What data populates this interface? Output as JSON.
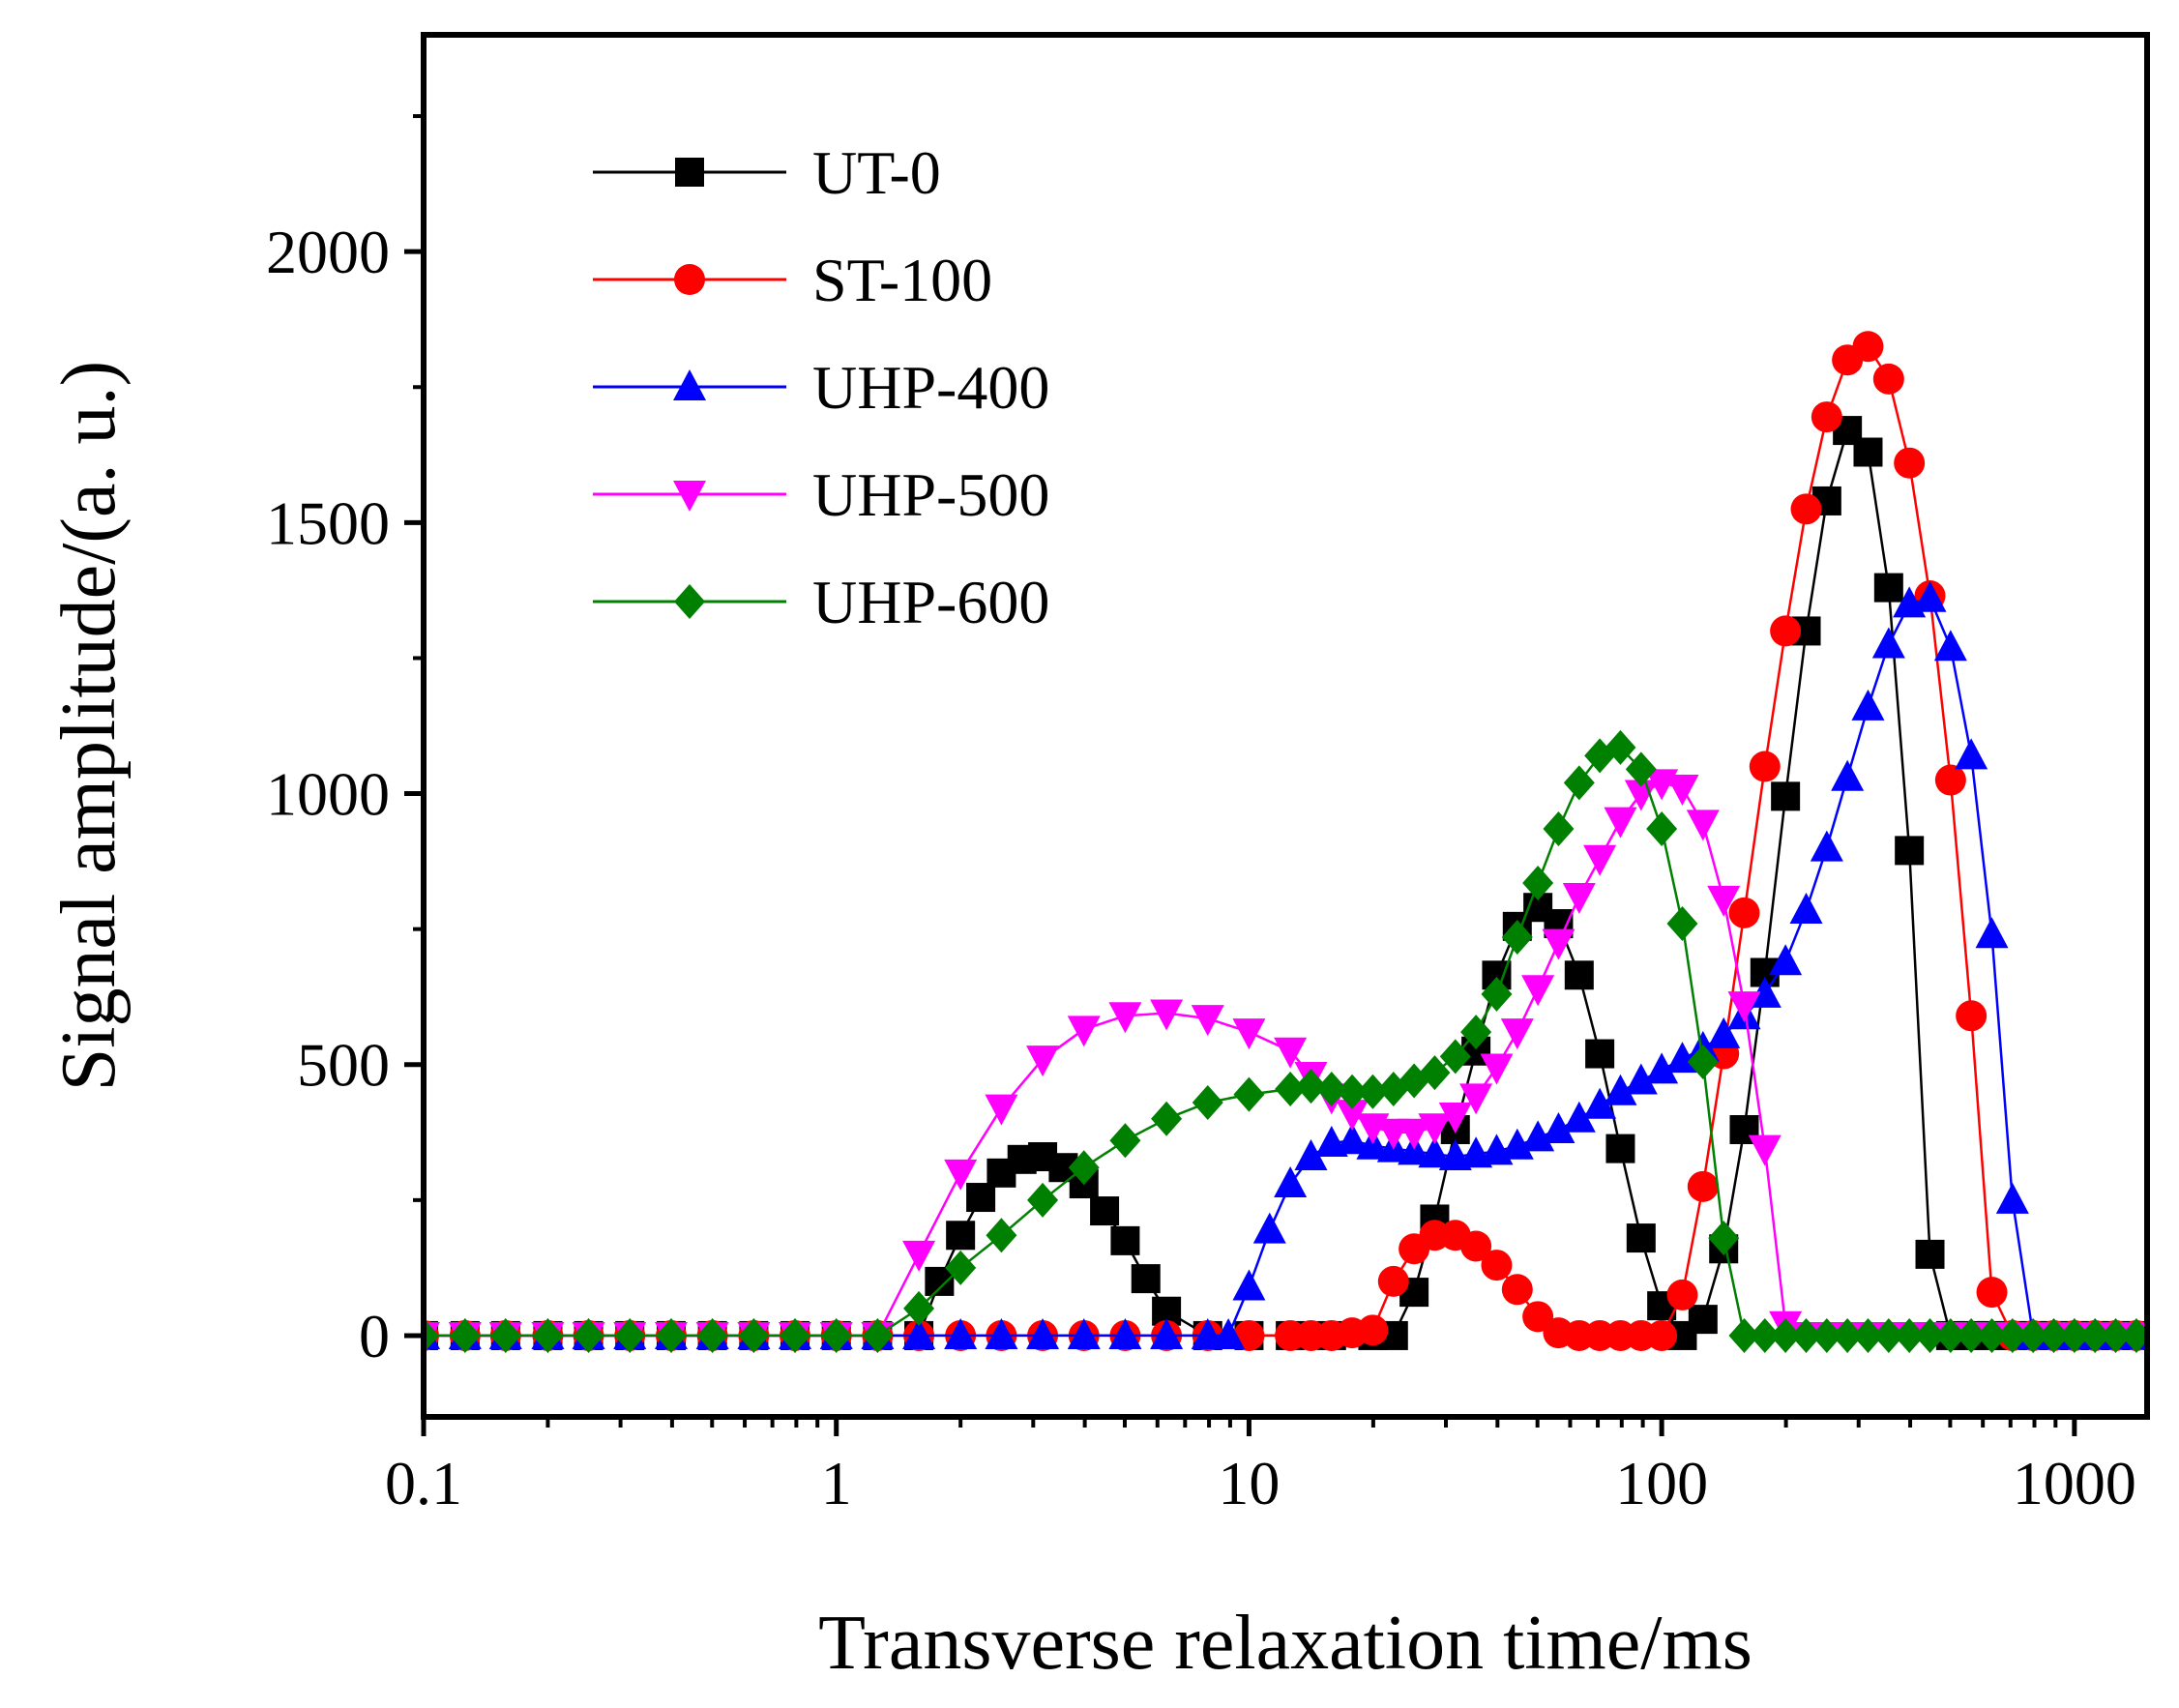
{
  "chart_data": {
    "type": "line",
    "title": "",
    "xlabel": "Transverse relaxation time/ms",
    "ylabel": "Signal amplitude/(a. u.)",
    "xscale": "log",
    "xlim": [
      0.1,
      1500
    ],
    "ylim": [
      -150,
      2400
    ],
    "xticks": [
      0.1,
      1,
      10,
      100,
      1000
    ],
    "xtick_labels": [
      "0.1",
      "1",
      "10",
      "100",
      "1000"
    ],
    "yticks": [
      0,
      500,
      1000,
      1500,
      2000
    ],
    "ytick_labels": [
      "0",
      "500",
      "1000",
      "1500",
      "2000"
    ],
    "legend_position": "top-left",
    "series": [
      {
        "name": "UT-0",
        "color": "#000000",
        "marker": "square",
        "x": [
          0.1,
          0.126,
          0.158,
          0.2,
          0.251,
          0.316,
          0.398,
          0.501,
          0.631,
          0.794,
          1,
          1.259,
          1.585,
          1.778,
          2,
          2.239,
          2.512,
          2.818,
          3.162,
          3.548,
          3.981,
          4.467,
          5.012,
          5.623,
          6.31,
          7.943,
          10,
          12.59,
          15.85,
          19.95,
          22.39,
          25.12,
          28.18,
          31.62,
          35.48,
          39.81,
          44.67,
          50.12,
          56.23,
          63.1,
          70.79,
          79.43,
          89.13,
          100,
          112.2,
          125.9,
          141.3,
          158.5,
          177.8,
          199.5,
          223.9,
          251.2,
          281.8,
          316.2,
          354.8,
          398.1,
          446.7,
          501.2,
          562.3,
          631,
          707.9,
          794.3,
          891.3,
          1000,
          1122,
          1259,
          1413
        ],
        "y": [
          0,
          0,
          0,
          0,
          0,
          0,
          0,
          0,
          0,
          0,
          0,
          0,
          0,
          100,
          185,
          255,
          300,
          325,
          330,
          310,
          280,
          230,
          175,
          105,
          45,
          0,
          0,
          0,
          0,
          0,
          0,
          80,
          215,
          380,
          525,
          665,
          755,
          790,
          760,
          665,
          520,
          345,
          180,
          55,
          0,
          30,
          160,
          380,
          670,
          995,
          1300,
          1540,
          1670,
          1630,
          1380,
          895,
          150,
          0,
          0,
          0,
          0,
          0,
          0,
          0,
          0,
          0,
          0
        ]
      },
      {
        "name": "ST-100",
        "color": "#ff0000",
        "marker": "circle",
        "x": [
          0.1,
          0.126,
          0.158,
          0.2,
          0.251,
          0.316,
          0.398,
          0.501,
          0.631,
          0.794,
          1,
          1.259,
          1.585,
          2,
          2.512,
          3.162,
          3.981,
          5.012,
          6.31,
          7.943,
          10,
          12.59,
          14.13,
          15.85,
          17.78,
          19.95,
          22.39,
          25.12,
          28.18,
          31.62,
          35.48,
          39.81,
          44.67,
          50.12,
          56.23,
          63.1,
          70.79,
          79.43,
          89.13,
          100,
          112.2,
          125.9,
          141.3,
          158.5,
          177.8,
          199.5,
          223.9,
          251.2,
          281.8,
          316.2,
          354.8,
          398.1,
          446.7,
          501.2,
          562.3,
          631,
          707.9,
          794.3,
          891.3,
          1000,
          1122,
          1259,
          1413
        ],
        "y": [
          0,
          0,
          0,
          0,
          0,
          0,
          0,
          0,
          0,
          0,
          0,
          0,
          0,
          0,
          0,
          0,
          0,
          0,
          0,
          0,
          0,
          0,
          0,
          0,
          5,
          10,
          100,
          160,
          185,
          185,
          165,
          130,
          85,
          35,
          5,
          0,
          0,
          0,
          0,
          0,
          75,
          275,
          520,
          780,
          1050,
          1300,
          1525,
          1695,
          1800,
          1825,
          1765,
          1610,
          1365,
          1025,
          590,
          80,
          0,
          0,
          0,
          0,
          0,
          0,
          0
        ]
      },
      {
        "name": "UHP-400",
        "color": "#0000ff",
        "marker": "triangle-up",
        "x": [
          0.1,
          0.126,
          0.158,
          0.2,
          0.251,
          0.316,
          0.398,
          0.501,
          0.631,
          0.794,
          1,
          1.259,
          1.585,
          2,
          2.512,
          3.162,
          3.981,
          5.012,
          6.31,
          7.943,
          8.913,
          10,
          11.22,
          12.59,
          14.13,
          15.85,
          17.78,
          19.95,
          22.39,
          25.12,
          28.18,
          31.62,
          35.48,
          39.81,
          44.67,
          50.12,
          56.23,
          63.1,
          70.79,
          79.43,
          89.13,
          100,
          112.2,
          125.9,
          141.3,
          158.5,
          177.8,
          199.5,
          223.9,
          251.2,
          281.8,
          316.2,
          354.8,
          398.1,
          446.7,
          501.2,
          562.3,
          631,
          707.9,
          794.3,
          891.3,
          1000,
          1122,
          1259,
          1413
        ],
        "y": [
          0,
          0,
          0,
          0,
          0,
          0,
          0,
          0,
          0,
          0,
          0,
          0,
          0,
          0,
          0,
          0,
          0,
          0,
          0,
          0,
          0,
          90,
          195,
          280,
          330,
          355,
          360,
          350,
          345,
          340,
          335,
          330,
          335,
          340,
          350,
          365,
          380,
          400,
          425,
          450,
          470,
          490,
          510,
          530,
          555,
          590,
          630,
          690,
          785,
          900,
          1030,
          1160,
          1275,
          1350,
          1360,
          1270,
          1070,
          740,
          250,
          0,
          0,
          0,
          0,
          0,
          0
        ]
      },
      {
        "name": "UHP-500",
        "color": "#ff00ff",
        "marker": "triangle-down",
        "x": [
          0.1,
          0.126,
          0.158,
          0.2,
          0.251,
          0.316,
          0.398,
          0.501,
          0.631,
          0.794,
          1,
          1.259,
          1.585,
          2,
          2.512,
          3.162,
          3.981,
          5.012,
          6.31,
          7.943,
          10,
          12.59,
          14.13,
          15.85,
          17.78,
          19.95,
          22.39,
          25.12,
          28.18,
          31.62,
          35.48,
          39.81,
          44.67,
          50.12,
          56.23,
          63.1,
          70.79,
          79.43,
          89.13,
          100,
          112.2,
          125.9,
          141.3,
          158.5,
          177.8,
          199.5,
          223.9,
          251.2,
          281.8,
          316.2,
          354.8,
          398.1,
          446.7,
          501.2,
          562.3,
          631,
          707.9,
          794.3,
          891.3,
          1000,
          1122,
          1259,
          1413
        ],
        "y": [
          0,
          0,
          0,
          0,
          0,
          0,
          0,
          0,
          0,
          0,
          0,
          0,
          150,
          300,
          420,
          510,
          565,
          590,
          595,
          585,
          560,
          525,
          480,
          440,
          410,
          385,
          375,
          375,
          385,
          405,
          440,
          495,
          560,
          640,
          725,
          810,
          880,
          950,
          1000,
          1020,
          1010,
          945,
          805,
          610,
          345,
          20,
          0,
          0,
          0,
          0,
          0,
          0,
          0,
          0,
          0,
          0,
          0,
          0,
          0,
          0,
          0,
          0,
          0
        ]
      },
      {
        "name": "UHP-600",
        "color": "#008000",
        "marker": "diamond",
        "x": [
          0.1,
          0.126,
          0.158,
          0.2,
          0.251,
          0.316,
          0.398,
          0.501,
          0.631,
          0.794,
          1,
          1.259,
          1.585,
          2,
          2.512,
          3.162,
          3.981,
          5.012,
          6.31,
          7.943,
          10,
          12.59,
          14.13,
          15.85,
          17.78,
          19.95,
          22.39,
          25.12,
          28.18,
          31.62,
          35.48,
          39.81,
          44.67,
          50.12,
          56.23,
          63.1,
          70.79,
          79.43,
          89.13,
          100,
          112.2,
          125.9,
          141.3,
          158.5,
          177.8,
          199.5,
          223.9,
          251.2,
          281.8,
          316.2,
          354.8,
          398.1,
          446.7,
          501.2,
          562.3,
          631,
          707.9,
          794.3,
          891.3,
          1000,
          1122,
          1259,
          1413
        ],
        "y": [
          0,
          0,
          0,
          0,
          0,
          0,
          0,
          0,
          0,
          0,
          0,
          0,
          50,
          125,
          185,
          250,
          310,
          360,
          400,
          430,
          445,
          455,
          460,
          455,
          450,
          450,
          455,
          470,
          485,
          515,
          560,
          630,
          735,
          835,
          935,
          1020,
          1070,
          1085,
          1045,
          935,
          760,
          505,
          180,
          0,
          0,
          0,
          0,
          0,
          0,
          0,
          0,
          0,
          0,
          0,
          0,
          0,
          0,
          0,
          0,
          0,
          0,
          0,
          0
        ]
      }
    ]
  }
}
